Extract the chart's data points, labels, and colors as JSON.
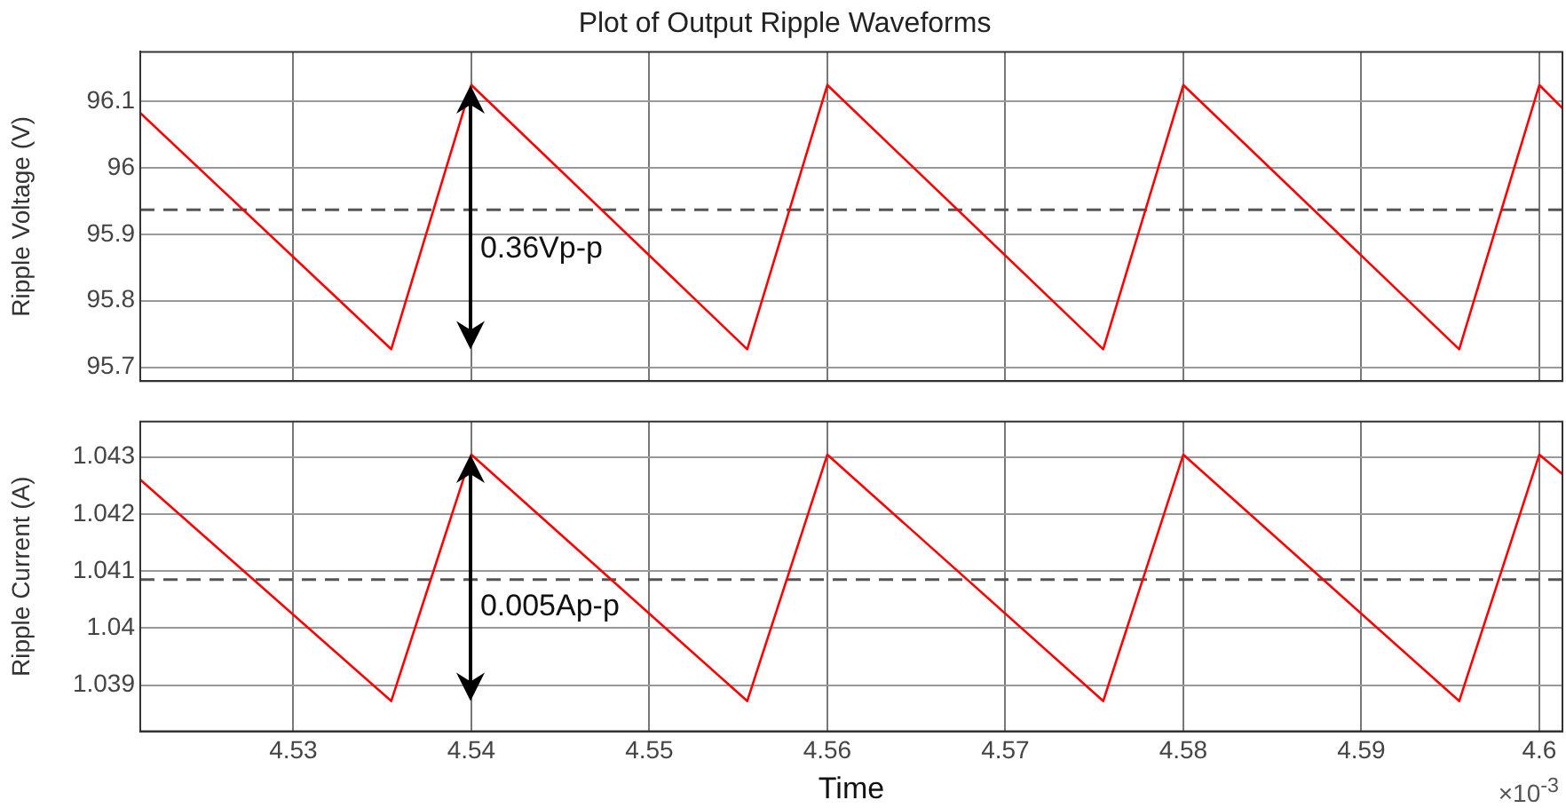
{
  "chart_data": [
    {
      "type": "line",
      "title": "Plot of Output Ripple Waveforms",
      "ylabel": "Ripple Voltage (V)",
      "x": [
        4.5214,
        4.5355,
        4.54,
        4.5555,
        4.56,
        4.5755,
        4.58,
        4.5955,
        4.6,
        4.6013
      ],
      "series": [
        {
          "color": "#ff0000",
          "values": [
            96.083,
            95.727,
            96.125,
            95.727,
            96.125,
            95.727,
            96.125,
            95.727,
            96.125,
            96.09
          ]
        }
      ],
      "xlim": [
        4.5214,
        4.6013
      ],
      "xticks": [
        4.53,
        4.54,
        4.55,
        4.56,
        4.57,
        4.58,
        4.59,
        4.6
      ],
      "ylim": [
        95.679,
        96.175
      ],
      "yticks": [
        95.7,
        95.8,
        95.9,
        96,
        96.1
      ],
      "ref_lines": [
        {
          "axis": "y",
          "value": 95.937,
          "color": "#555555",
          "line_style": "dashed"
        }
      ],
      "annotations": [
        "0.36Vp-p"
      ],
      "grid": true,
      "legend": false,
      "marker": "none",
      "line_style": "solid",
      "tick_labels": "y"
    },
    {
      "type": "line",
      "xlabel": "Time",
      "ylabel": "Ripple Current (A)",
      "x": [
        4.5214,
        4.5355,
        4.54,
        4.5555,
        4.56,
        4.5755,
        4.58,
        4.5955,
        4.6,
        4.6013
      ],
      "series": [
        {
          "color": "#ff0000",
          "values": [
            1.0426,
            1.03872,
            1.04304,
            1.03872,
            1.04304,
            1.03872,
            1.04304,
            1.03872,
            1.04304,
            1.0427
          ]
        }
      ],
      "xlim": [
        4.5214,
        4.6013
      ],
      "xticks": [
        4.53,
        4.54,
        4.55,
        4.56,
        4.57,
        4.58,
        4.59,
        4.6
      ],
      "ylim": [
        1.03819,
        1.04362
      ],
      "yticks": [
        1.039,
        1.04,
        1.041,
        1.042,
        1.043
      ],
      "ref_lines": [
        {
          "axis": "y",
          "value": 1.04085,
          "color": "#555555",
          "line_style": "dashed"
        }
      ],
      "annotations": [
        "0.005Ap-p",
        "×10$^{-3}$"
      ],
      "grid": true,
      "legend": false,
      "marker": "none",
      "line_style": "solid"
    }
  ]
}
